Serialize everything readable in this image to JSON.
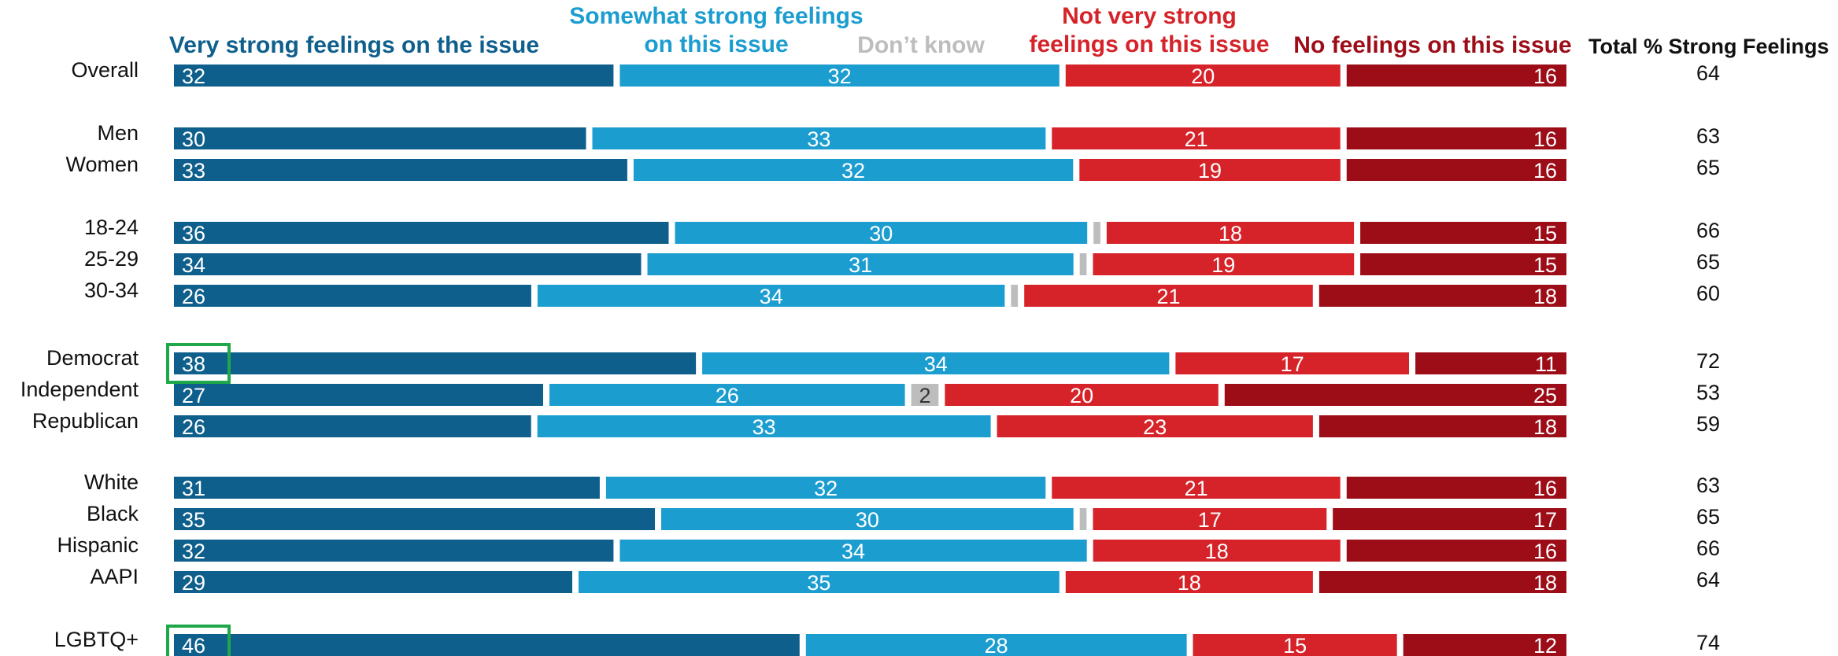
{
  "chart_data": {
    "type": "bar",
    "orientation": "horizontal",
    "stacked": true,
    "categories": [
      "Overall",
      "Men",
      "Women",
      "18-24",
      "25-29",
      "30-34",
      "Democrat",
      "Independent",
      "Republican",
      "White",
      "Black",
      "Hispanic",
      "AAPI",
      "LGBTQ+"
    ],
    "series": [
      {
        "name": "Very strong feelings on the issue",
        "color": "#0f5f8c",
        "values": [
          32,
          30,
          33,
          36,
          34,
          26,
          38,
          27,
          26,
          31,
          35,
          32,
          29,
          46
        ]
      },
      {
        "name": "Somewhat strong feelings on this issue",
        "color": "#1c9dd0",
        "values": [
          32,
          33,
          32,
          30,
          31,
          34,
          34,
          26,
          33,
          32,
          30,
          34,
          35,
          28
        ]
      },
      {
        "name": "Don’t know",
        "color": "#bdbdbd",
        "values": [
          0,
          0,
          0,
          0.5,
          0.5,
          0.5,
          0,
          2,
          0,
          0,
          0.5,
          0,
          0,
          0
        ]
      },
      {
        "name": "Not very strong feelings on this issue",
        "color": "#d52329",
        "values": [
          20,
          21,
          19,
          18,
          19,
          21,
          17,
          20,
          23,
          21,
          17,
          18,
          18,
          15
        ]
      },
      {
        "name": "No feelings on this issue",
        "color": "#9c0d18",
        "values": [
          16,
          16,
          16,
          15,
          15,
          18,
          11,
          25,
          18,
          16,
          17,
          16,
          18,
          12
        ]
      }
    ],
    "value_labels": {
      "shown": [
        true,
        true,
        true,
        true,
        true,
        true,
        true,
        true,
        true,
        true,
        true,
        true,
        true,
        true
      ],
      "dont_know_shown": [
        false,
        false,
        false,
        false,
        false,
        false,
        false,
        true,
        false,
        false,
        false,
        false,
        false,
        false
      ]
    },
    "totals": {
      "header": "Total % Strong Feelings",
      "values": [
        64,
        63,
        65,
        66,
        65,
        60,
        72,
        53,
        59,
        63,
        65,
        66,
        64,
        74
      ]
    },
    "highlighted_categories": [
      "Democrat",
      "LGBTQ+"
    ],
    "highlight_color": "#1fa84a",
    "legend": {
      "very_strong": [
        "Very strong feelings on the issue"
      ],
      "somewhat_strong": [
        "Somewhat strong feelings",
        "on this issue"
      ],
      "dont_know": [
        "Don’t know"
      ],
      "not_very_strong": [
        "Not very strong",
        "feelings on this issue"
      ],
      "no_feelings": [
        "No feelings on this issue"
      ]
    }
  }
}
